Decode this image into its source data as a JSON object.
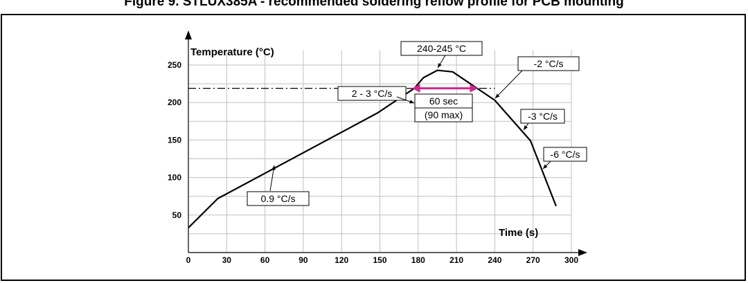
{
  "figure_title": "Figure 9. STLUX385A - recommended soldering reflow profile for PCB mounting",
  "chart_data": {
    "type": "line",
    "title": "",
    "xlabel": "Time (s)",
    "ylabel": "Temperature (°C)",
    "xlim": [
      0,
      300
    ],
    "ylim": [
      0,
      270
    ],
    "x_ticks": [
      0,
      30,
      60,
      90,
      120,
      150,
      180,
      210,
      240,
      270,
      300
    ],
    "y_ticks": [
      50,
      100,
      150,
      200,
      250
    ],
    "grid": true,
    "series": [
      {
        "name": "",
        "color": "#000000",
        "points": [
          [
            0,
            33
          ],
          [
            23,
            72
          ],
          [
            148,
            186
          ],
          [
            177,
            219
          ],
          [
            184,
            233
          ],
          [
            195,
            243
          ],
          [
            207,
            241
          ],
          [
            240,
            203
          ],
          [
            268,
            149
          ],
          [
            288,
            62
          ]
        ]
      }
    ],
    "reference_line": {
      "y": 219,
      "x_range": [
        0,
        240
      ],
      "style": "dash-dot"
    },
    "time_above_marker": {
      "x_start": 175,
      "x_end": 227,
      "y": 219,
      "color": "#d0278f"
    },
    "annotations": [
      {
        "id": "peak",
        "label": "240-245 °C",
        "box": true
      },
      {
        "id": "ramp1",
        "label": "0.9 °C/s",
        "box": true
      },
      {
        "id": "ramp2",
        "label": "2 - 3 °C/s",
        "box": true
      },
      {
        "id": "cool1",
        "label": "-2 °C/s",
        "box": true
      },
      {
        "id": "cool2",
        "label": "-3 °C/s",
        "box": true
      },
      {
        "id": "cool3",
        "label": "-6 °C/s",
        "box": true
      },
      {
        "id": "tal1",
        "label": "60 sec",
        "box": true
      },
      {
        "id": "tal2",
        "label": "(90 max)",
        "box": true
      }
    ]
  }
}
